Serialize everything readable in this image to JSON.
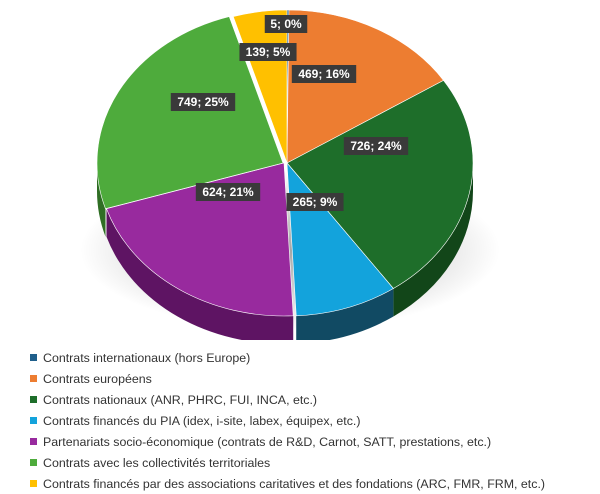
{
  "chart_data": {
    "type": "pie",
    "title": "",
    "slices": [
      {
        "label": "Contrats internationaux (hors Europe)",
        "value": 5,
        "percent": 0,
        "data_label": "5; 0%",
        "color": "#1f5f8b",
        "side_color": "#123d5a"
      },
      {
        "label": "Contrats européens",
        "value": 469,
        "percent": 16,
        "data_label": "469; 16%",
        "color": "#ed7d31",
        "side_color": "#a85420"
      },
      {
        "label": "Contrats nationaux (ANR, PHRC, FUI, INCA, etc.)",
        "value": 726,
        "percent": 24,
        "data_label": "726; 24%",
        "color": "#1e6e2a",
        "side_color": "#124619"
      },
      {
        "label": "Contrats financés du PIA (idex, i-site, labex, équipex, etc.)",
        "value": 265,
        "percent": 9,
        "data_label": "265; 9%",
        "color": "#13a3dc",
        "side_color": "#114a63"
      },
      {
        "label": "Partenariats socio-économique (contrats de R&D, Carnot, SATT, prestations, etc.)",
        "value": 624,
        "percent": 21,
        "data_label": "624; 21%",
        "color": "#982a9e",
        "side_color": "#5e1463"
      },
      {
        "label": "Contrats avec les collectivités territoriales",
        "value": 749,
        "percent": 25,
        "data_label": "749; 25%",
        "color": "#4eab3c",
        "side_color": "#2f6e24"
      },
      {
        "label": "Contrats financés par des associations caritatives et des fondations (ARC, FMR, FRM, etc.)",
        "value": 139,
        "percent": 5,
        "data_label": "139; 5%",
        "color": "#ffc000",
        "side_color": "#b38600"
      }
    ],
    "legend_position": "bottom"
  }
}
